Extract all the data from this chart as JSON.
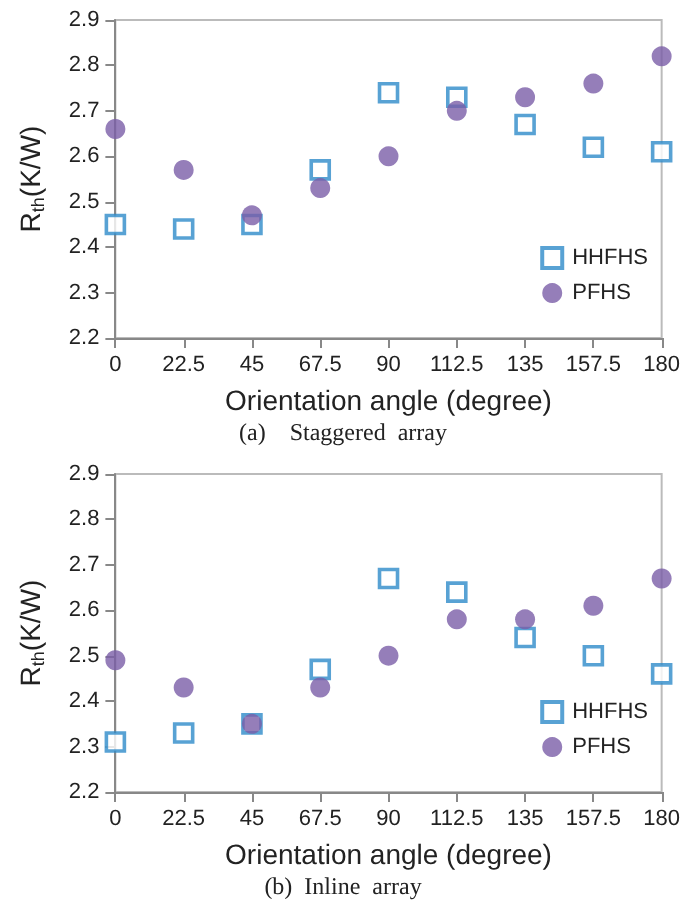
{
  "chart_data": [
    {
      "type": "scatter",
      "xlabel": "Orientation angle (degree)",
      "ylabel": "R$_{th}$(K/W)",
      "annotations": [
        "(a)    Staggered  array"
      ],
      "x": [
        0,
        22.5,
        45,
        67.5,
        90,
        112.5,
        135,
        157.5,
        180
      ],
      "xlim": [
        0,
        180
      ],
      "xticks": [
        0,
        22.5,
        45,
        67.5,
        90,
        112.5,
        135,
        157.5,
        180
      ],
      "ylim": [
        2.2,
        2.9
      ],
      "yticks": [
        2.2,
        2.3,
        2.4,
        2.5,
        2.6,
        2.7,
        2.8,
        2.9
      ],
      "grid": false,
      "legend": "right",
      "series": [
        {
          "name": "HHFHS",
          "color": "#2e8bc9",
          "marker": "square",
          "values": [
            2.45,
            2.44,
            2.45,
            2.57,
            2.74,
            2.73,
            2.67,
            2.62,
            2.61
          ]
        },
        {
          "name": "PFHS",
          "color": "#7b5ea7",
          "marker": "circle",
          "values": [
            2.66,
            2.57,
            2.47,
            2.53,
            2.6,
            2.7,
            2.73,
            2.76,
            2.82
          ]
        }
      ]
    },
    {
      "type": "scatter",
      "xlabel": "Orientation angle (degree)",
      "ylabel": "R$_{th}$(K/W)",
      "annotations": [
        "(b)  Inline  array"
      ],
      "x": [
        0,
        22.5,
        45,
        67.5,
        90,
        112.5,
        135,
        157.5,
        180
      ],
      "xlim": [
        0,
        180
      ],
      "xticks": [
        0,
        22.5,
        45,
        67.5,
        90,
        112.5,
        135,
        157.5,
        180
      ],
      "ylim": [
        2.2,
        2.9
      ],
      "yticks": [
        2.2,
        2.3,
        2.4,
        2.5,
        2.6,
        2.7,
        2.8,
        2.9
      ],
      "grid": false,
      "legend": "right",
      "series": [
        {
          "name": "HHFHS",
          "color": "#2e8bc9",
          "marker": "square",
          "values": [
            2.31,
            2.33,
            2.35,
            2.47,
            2.67,
            2.64,
            2.54,
            2.5,
            2.46
          ]
        },
        {
          "name": "PFHS",
          "color": "#7b5ea7",
          "marker": "circle",
          "values": [
            2.49,
            2.43,
            2.35,
            2.43,
            2.5,
            2.58,
            2.58,
            2.61,
            2.67
          ]
        }
      ]
    }
  ]
}
